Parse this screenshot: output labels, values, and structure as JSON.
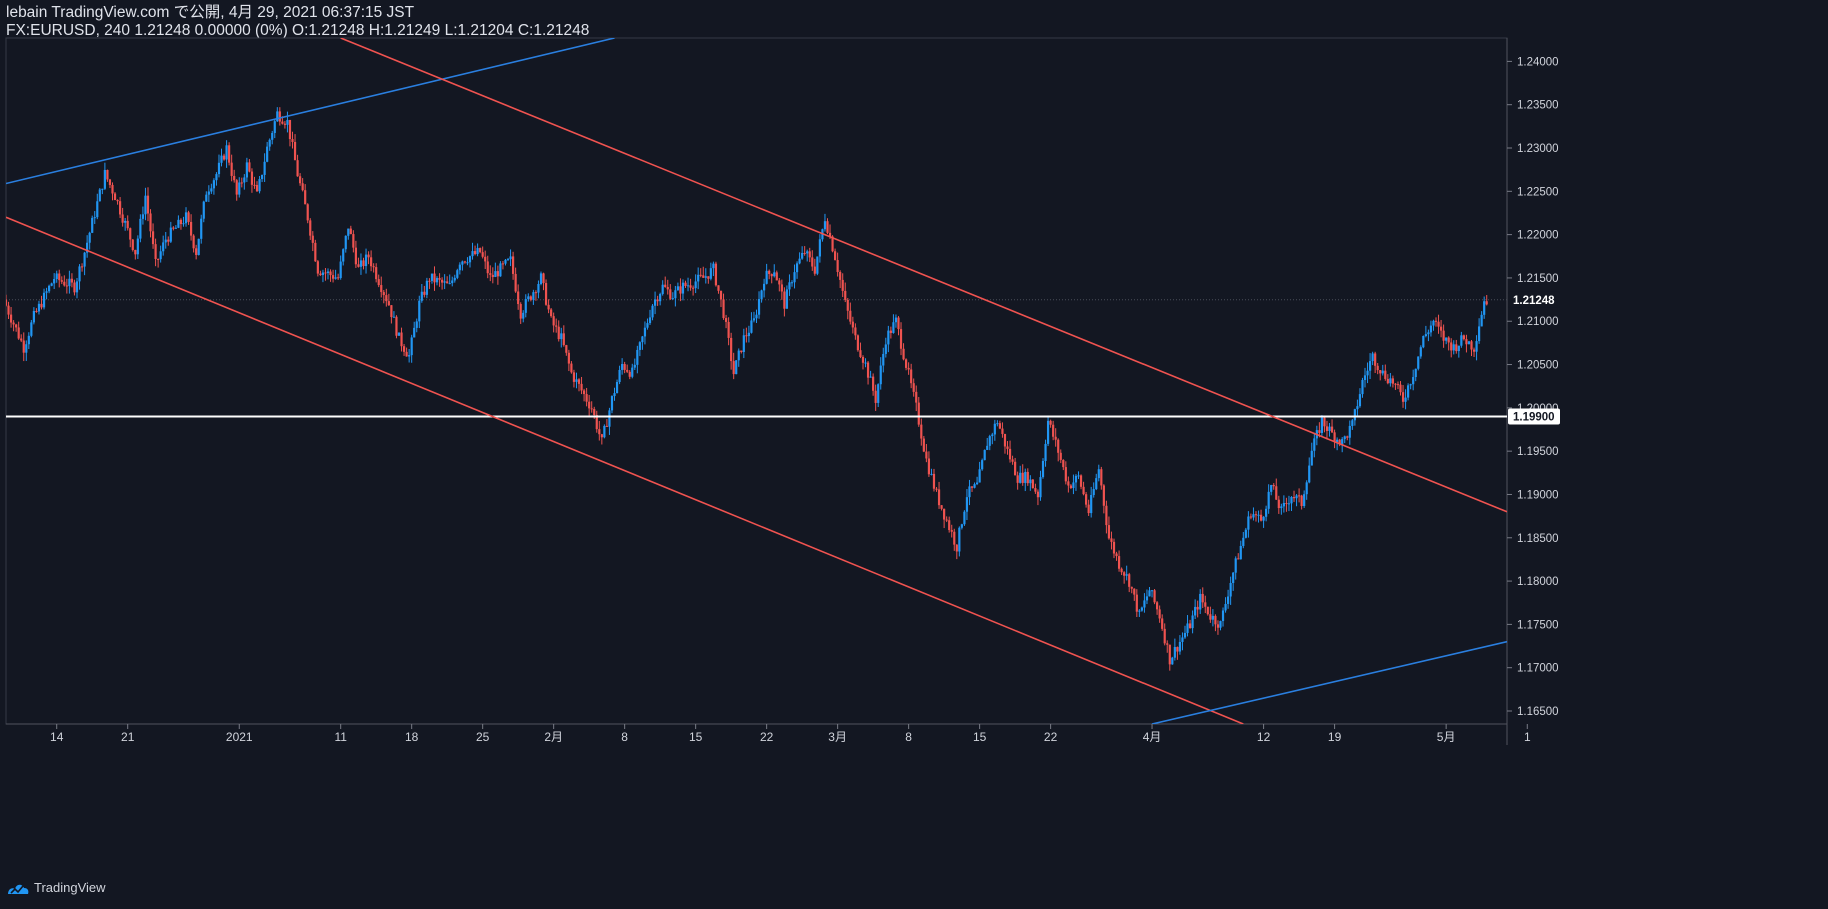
{
  "header": {
    "line1": "lebain TradingView.com で公開, 4月 29, 2021 06:37:15 JST",
    "line2": "FX:EURUSD, 240 1.21248 0.00000 (0%) O:1.21248 H:1.21249 L:1.21204 C:1.21248"
  },
  "footer": {
    "brand": "TradingView"
  },
  "colors": {
    "background": "#131722",
    "up": "#2196f3",
    "down": "#ef5350",
    "channel": "#f05350",
    "trend": "#2a7fe0",
    "support": "#ffffff",
    "grid": "#363a45"
  },
  "chart_data": {
    "type": "candlestick",
    "symbol": "FX:EURUSD",
    "timeframe": "240",
    "ylim": [
      1.1635,
      1.2427
    ],
    "y_ticks": [
      "1.24000",
      "1.23500",
      "1.23000",
      "1.22500",
      "1.22000",
      "1.21500",
      "1.21000",
      "1.20500",
      "1.20000",
      "1.19500",
      "1.19000",
      "1.18500",
      "1.18000",
      "1.17500",
      "1.17000",
      "1.16500"
    ],
    "x_ticks": [
      "14",
      "21",
      "2021",
      "11",
      "18",
      "25",
      "2月",
      "8",
      "15",
      "22",
      "3月",
      "8",
      "15",
      "22",
      "4月",
      "12",
      "19",
      "5月",
      "1"
    ],
    "x_tick_days": [
      0,
      7,
      18,
      28,
      35,
      42,
      49,
      56,
      63,
      70,
      77,
      84,
      91,
      98,
      108,
      119,
      126,
      137,
      145
    ],
    "x_domain_days": [
      -5,
      143
    ],
    "current_price_label": "1.21248",
    "support_label": "1.19900",
    "support_level": 1.199,
    "price_path": [
      [
        -5,
        1.2125
      ],
      [
        -3,
        1.207
      ],
      [
        -2,
        1.2105
      ],
      [
        0,
        1.215
      ],
      [
        2,
        1.214
      ],
      [
        3,
        1.218
      ],
      [
        5,
        1.227
      ],
      [
        6,
        1.2245
      ],
      [
        8,
        1.218
      ],
      [
        9,
        1.2245
      ],
      [
        10,
        1.2165
      ],
      [
        11,
        1.2195
      ],
      [
        13,
        1.222
      ],
      [
        14,
        1.218
      ],
      [
        15,
        1.225
      ],
      [
        16,
        1.227
      ],
      [
        17,
        1.23
      ],
      [
        18,
        1.2245
      ],
      [
        19,
        1.228
      ],
      [
        20,
        1.2245
      ],
      [
        21,
        1.23
      ],
      [
        22,
        1.234
      ],
      [
        23,
        1.233
      ],
      [
        24,
        1.227
      ],
      [
        25,
        1.222
      ],
      [
        26,
        1.216
      ],
      [
        28,
        1.215
      ],
      [
        29,
        1.221
      ],
      [
        30,
        1.216
      ],
      [
        31,
        1.2175
      ],
      [
        33,
        1.212
      ],
      [
        34,
        1.208
      ],
      [
        35,
        1.206
      ],
      [
        36,
        1.212
      ],
      [
        37,
        1.215
      ],
      [
        39,
        1.214
      ],
      [
        40,
        1.217
      ],
      [
        42,
        1.218
      ],
      [
        43,
        1.215
      ],
      [
        45,
        1.217
      ],
      [
        46,
        1.211
      ],
      [
        47,
        1.213
      ],
      [
        48,
        1.215
      ],
      [
        49,
        1.21
      ],
      [
        50,
        1.208
      ],
      [
        51,
        1.204
      ],
      [
        52,
        1.202
      ],
      [
        53,
        1.2
      ],
      [
        54,
        1.196
      ],
      [
        55,
        1.201
      ],
      [
        56,
        1.205
      ],
      [
        57,
        1.204
      ],
      [
        58,
        1.208
      ],
      [
        59,
        1.212
      ],
      [
        60,
        1.214
      ],
      [
        61,
        1.213
      ],
      [
        62,
        1.214
      ],
      [
        64,
        1.215
      ],
      [
        65,
        1.216
      ],
      [
        66,
        1.211
      ],
      [
        67,
        1.204
      ],
      [
        68,
        1.208
      ],
      [
        69,
        1.21
      ],
      [
        70,
        1.215
      ],
      [
        71,
        1.216
      ],
      [
        72,
        1.212
      ],
      [
        73,
        1.216
      ],
      [
        74,
        1.218
      ],
      [
        75,
        1.216
      ],
      [
        76,
        1.222
      ],
      [
        77,
        1.2175
      ],
      [
        78,
        1.212
      ],
      [
        79,
        1.208
      ],
      [
        80,
        1.205
      ],
      [
        81,
        1.201
      ],
      [
        82,
        1.208
      ],
      [
        83,
        1.21
      ],
      [
        84,
        1.205
      ],
      [
        85,
        1.2
      ],
      [
        86,
        1.194
      ],
      [
        87,
        1.19
      ],
      [
        88,
        1.187
      ],
      [
        89,
        1.184
      ],
      [
        90,
        1.19
      ],
      [
        91,
        1.191
      ],
      [
        92,
        1.196
      ],
      [
        93,
        1.1985
      ],
      [
        94,
        1.195
      ],
      [
        95,
        1.192
      ],
      [
        96,
        1.192
      ],
      [
        97,
        1.19
      ],
      [
        98,
        1.1985
      ],
      [
        99,
        1.195
      ],
      [
        100,
        1.191
      ],
      [
        101,
        1.192
      ],
      [
        102,
        1.188
      ],
      [
        103,
        1.193
      ],
      [
        104,
        1.185
      ],
      [
        105,
        1.182
      ],
      [
        106,
        1.18
      ],
      [
        107,
        1.176
      ],
      [
        108,
        1.179
      ],
      [
        109,
        1.176
      ],
      [
        110,
        1.171
      ],
      [
        111,
        1.173
      ],
      [
        112,
        1.175
      ],
      [
        113,
        1.178
      ],
      [
        114,
        1.176
      ],
      [
        115,
        1.175
      ],
      [
        116,
        1.18
      ],
      [
        117,
        1.184
      ],
      [
        118,
        1.188
      ],
      [
        119,
        1.187
      ],
      [
        120,
        1.191
      ],
      [
        121,
        1.188
      ],
      [
        122,
        1.19
      ],
      [
        123,
        1.189
      ],
      [
        124,
        1.195
      ],
      [
        125,
        1.1985
      ],
      [
        126,
        1.197
      ],
      [
        127,
        1.196
      ],
      [
        128,
        1.198
      ],
      [
        129,
        1.203
      ],
      [
        130,
        1.206
      ],
      [
        131,
        1.204
      ],
      [
        132,
        1.203
      ],
      [
        133,
        1.201
      ],
      [
        134,
        1.204
      ],
      [
        135,
        1.208
      ],
      [
        136,
        1.21
      ],
      [
        137,
        1.208
      ],
      [
        138,
        1.207
      ],
      [
        139,
        1.208
      ],
      [
        140,
        1.207
      ],
      [
        141,
        1.2124
      ]
    ],
    "lines": [
      {
        "name": "upper-trend",
        "color": "trend",
        "from": [
          -5,
          1.2259
        ],
        "to": [
          55,
          1.2427
        ]
      },
      {
        "name": "channel-top",
        "color": "channel",
        "from": [
          28,
          1.2427
        ],
        "to": [
          143,
          1.188
        ]
      },
      {
        "name": "channel-bottom",
        "color": "channel",
        "from": [
          -5,
          1.222
        ],
        "to": [
          117,
          1.1635
        ]
      },
      {
        "name": "lower-trend",
        "color": "trend",
        "from": [
          108,
          1.1635
        ],
        "to": [
          143,
          1.173
        ]
      }
    ]
  }
}
